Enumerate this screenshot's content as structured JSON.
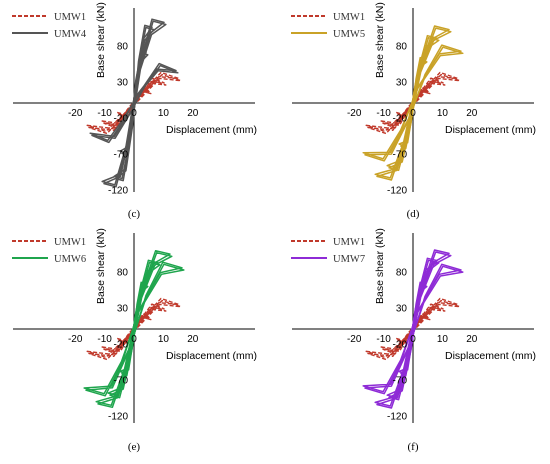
{
  "chart_data": [
    {
      "type": "line",
      "caption": "(c)",
      "xlabel": "Displacement (mm)",
      "ylabel": "Base shear (kN)",
      "xlim": [
        -20,
        20
      ],
      "ylim": [
        -120,
        120
      ],
      "xticks": [
        "-20",
        "-10",
        "0",
        "10",
        "20"
      ],
      "yticks": [
        "80",
        "30",
        "-20",
        "-70",
        "-120"
      ],
      "legend_position": "top-left",
      "series": [
        {
          "name": "UMW1",
          "color": "#c0392b",
          "style": "dashed",
          "loops": [
            {
              "disp": 5,
              "force": 16
            },
            {
              "disp": 10,
              "force": 28
            },
            {
              "disp": 15,
              "force": 34
            }
          ]
        },
        {
          "name": "UMW4",
          "color": "#555555",
          "style": "solid",
          "loops": [
            {
              "disp": 4,
              "force": 70
            },
            {
              "disp": 6,
              "force": 105
            },
            {
              "disp": 10,
              "force": 112
            },
            {
              "disp": 14,
              "force": 45
            }
          ]
        }
      ]
    },
    {
      "type": "line",
      "caption": "(d)",
      "xlabel": "Displacement (mm)",
      "ylabel": "Base shear (kN)",
      "xlim": [
        -20,
        20
      ],
      "ylim": [
        -120,
        120
      ],
      "xticks": [
        "-20",
        "-10",
        "0",
        "10",
        "20"
      ],
      "yticks": [
        "80",
        "30",
        "-20",
        "-70",
        "-120"
      ],
      "legend_position": "top-left",
      "series": [
        {
          "name": "UMW1",
          "color": "#c0392b",
          "style": "dashed",
          "loops": [
            {
              "disp": 5,
              "force": 16
            },
            {
              "disp": 10,
              "force": 28
            },
            {
              "disp": 15,
              "force": 34
            }
          ]
        },
        {
          "name": "UMW5",
          "color": "#c9a227",
          "style": "solid",
          "loops": [
            {
              "disp": 4,
              "force": 60
            },
            {
              "disp": 8,
              "force": 90
            },
            {
              "disp": 12,
              "force": 102
            },
            {
              "disp": 16,
              "force": 72
            }
          ]
        }
      ]
    },
    {
      "type": "line",
      "caption": "(e)",
      "xlabel": "Displacement (mm)",
      "ylabel": "Base shear (kN)",
      "xlim": [
        -20,
        20
      ],
      "ylim": [
        -120,
        120
      ],
      "xticks": [
        "-20",
        "-10",
        "0",
        "10",
        "20"
      ],
      "yticks": [
        "80",
        "30",
        "-20",
        "-70",
        "-120"
      ],
      "legend_position": "top-left",
      "series": [
        {
          "name": "UMW1",
          "color": "#c0392b",
          "style": "dashed",
          "loops": [
            {
              "disp": 5,
              "force": 16
            },
            {
              "disp": 10,
              "force": 28
            },
            {
              "disp": 15,
              "force": 34
            }
          ]
        },
        {
          "name": "UMW6",
          "color": "#1fa54d",
          "style": "solid",
          "loops": [
            {
              "disp": 4,
              "force": 62
            },
            {
              "disp": 8,
              "force": 92
            },
            {
              "disp": 12,
              "force": 104
            },
            {
              "disp": 16,
              "force": 85
            }
          ]
        }
      ]
    },
    {
      "type": "line",
      "caption": "(f)",
      "xlabel": "Displacement (mm)",
      "ylabel": "Base shear (kN)",
      "xlim": [
        -20,
        20
      ],
      "ylim": [
        -120,
        120
      ],
      "xticks": [
        "-20",
        "-10",
        "0",
        "10",
        "20"
      ],
      "yticks": [
        "80",
        "30",
        "-20",
        "-70",
        "-120"
      ],
      "legend_position": "top-left",
      "series": [
        {
          "name": "UMW1",
          "color": "#c0392b",
          "style": "dashed",
          "loops": [
            {
              "disp": 5,
              "force": 16
            },
            {
              "disp": 10,
              "force": 28
            },
            {
              "disp": 15,
              "force": 34
            }
          ]
        },
        {
          "name": "UMW7",
          "color": "#8e2bd6",
          "style": "solid",
          "loops": [
            {
              "disp": 4,
              "force": 62
            },
            {
              "disp": 8,
              "force": 95
            },
            {
              "disp": 12,
              "force": 105
            },
            {
              "disp": 16,
              "force": 82
            }
          ]
        }
      ]
    }
  ]
}
